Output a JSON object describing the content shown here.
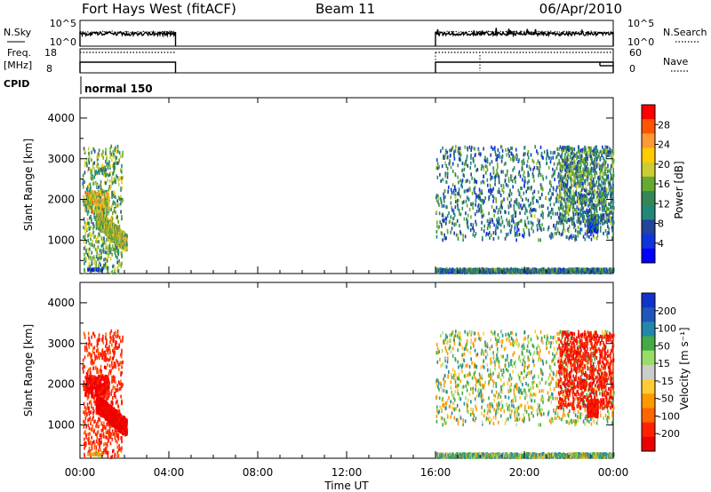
{
  "chart_data": {
    "type": "heatmap",
    "header": {
      "station": "Fort Hays West (fitACF)",
      "beam": "Beam 11",
      "date": "06/Apr/2010"
    },
    "x_axis": {
      "label": "Time UT",
      "ticks": [
        "00:00",
        "04:00",
        "08:00",
        "12:00",
        "16:00",
        "20:00",
        "00:00"
      ],
      "range_hours": [
        0,
        24
      ]
    },
    "operating_windows_hours": [
      [
        0.0,
        4.3
      ],
      [
        16.0,
        24.0
      ]
    ],
    "top_strip": {
      "left_label": "N.Sky",
      "left_ticks": [
        "10^5",
        "10^0"
      ],
      "right_label": "N.Search",
      "right_ticks": [
        "10^5",
        "10^0"
      ]
    },
    "freq_strip": {
      "left_label_1": "Freq.",
      "left_label_2": "[MHz]",
      "left_ticks": [
        "18",
        "8"
      ],
      "right_label": "Nave",
      "right_ticks": [
        "60",
        "0"
      ]
    },
    "cpid": {
      "label": "CPID",
      "mode": "normal 150"
    },
    "power_panel": {
      "ylabel": "Slant Range [km]",
      "yticks": [
        "4000",
        "3000",
        "2000",
        "1000"
      ],
      "ytick_values": [
        4000,
        3000,
        2000,
        1000
      ],
      "yrange": [
        180,
        4500
      ],
      "colorbar_label": "Power [dB]",
      "colorbar_ticks": [
        "28",
        "24",
        "20",
        "16",
        "12",
        "8",
        "4"
      ],
      "colorbar_colors": [
        "#ff0000",
        "#ff5500",
        "#ff9933",
        "#ffcc00",
        "#cccc33",
        "#66aa33",
        "#338855",
        "#228877",
        "#224499",
        "#1133dd",
        "#0000ff"
      ]
    },
    "velocity_panel": {
      "ylabel": "Slant Range [km]",
      "yticks": [
        "4000",
        "3000",
        "2000",
        "1000"
      ],
      "ytick_values": [
        4000,
        3000,
        2000,
        1000
      ],
      "yrange": [
        180,
        4500
      ],
      "colorbar_label": "Velocity [m s⁻¹]",
      "colorbar_ticks": [
        "200",
        "100",
        "50",
        "15",
        "-15",
        "-50",
        "-100",
        "-200"
      ],
      "colorbar_colors": [
        "#1133cc",
        "#2255bb",
        "#2288aa",
        "#44aa44",
        "#99dd66",
        "#cccccc",
        "#ffcc33",
        "#ff9900",
        "#ff6600",
        "#ff2200",
        "#ee0000"
      ]
    },
    "scatter_clusters": [
      {
        "t": [
          0.1,
          1.9
        ],
        "r": [
          200,
          3300
        ],
        "power": 14,
        "velocity": -150,
        "density": 0.08
      },
      {
        "t": [
          0.7,
          2.1
        ],
        "r": [
          750,
          1650
        ],
        "power": 18,
        "velocity": -250,
        "density": 0.85
      },
      {
        "t": [
          0.2,
          1.3
        ],
        "r": [
          1700,
          2200
        ],
        "power": 20,
        "velocity": -220,
        "density": 0.35
      },
      {
        "t": [
          0.3,
          1.0
        ],
        "r": [
          250,
          300
        ],
        "power": 6,
        "velocity": -30,
        "density": 0.7
      },
      {
        "t": [
          16.0,
          24.0
        ],
        "r": [
          200,
          300
        ],
        "power": 10,
        "velocity": 30,
        "density": 0.7
      },
      {
        "t": [
          16.0,
          24.0
        ],
        "r": [
          1000,
          3300
        ],
        "power": 10,
        "velocity": 10,
        "density": 0.05
      },
      {
        "t": [
          22.8,
          23.3
        ],
        "r": [
          1200,
          1600
        ],
        "power": 6,
        "velocity": -200,
        "density": 0.6
      },
      {
        "t": [
          21.5,
          24.0
        ],
        "r": [
          1400,
          3300
        ],
        "power": 12,
        "velocity": -180,
        "density": 0.12
      }
    ]
  }
}
